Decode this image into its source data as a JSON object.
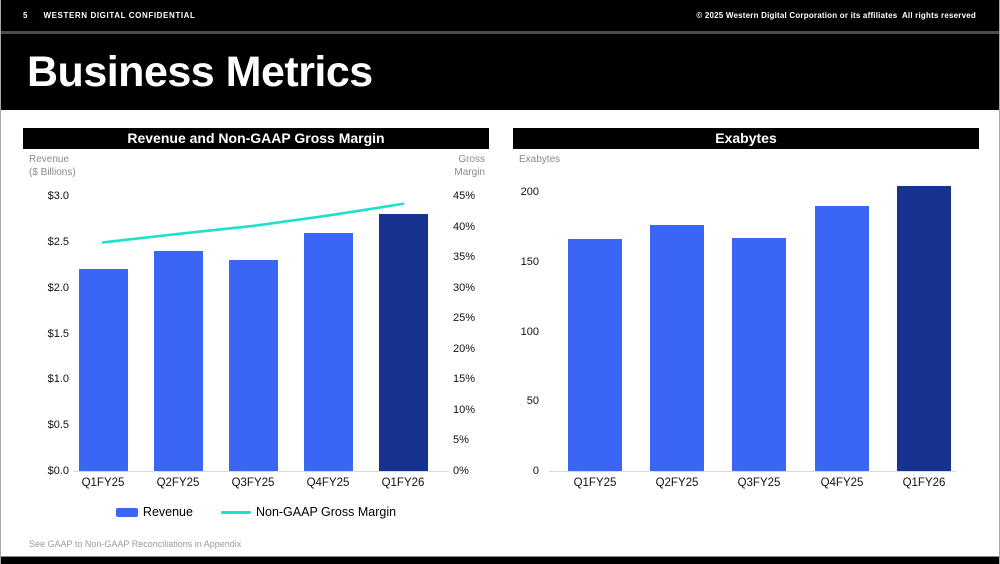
{
  "header": {
    "page_number": "5",
    "confidential": "WESTERN DIGITAL CONFIDENTIAL",
    "copyright": "© 2025 Western Digital Corporation or its affiliates  All rights reserved"
  },
  "title": "Business Metrics",
  "footnote": "See GAAP to Non-GAAP Reconciliations in Appendix",
  "colors": {
    "bar_blue": "#3A65F5",
    "bar_navy": "#16338F",
    "line_teal": "#1FE0C9",
    "banner_bg": "#000000",
    "banner_text": "#FFFFFF"
  },
  "chart_data": [
    {
      "type": "bar",
      "title": "Revenue and Non-GAAP Gross Margin",
      "left_axis_caption": [
        "Revenue",
        "($ Billions)"
      ],
      "right_axis_caption": [
        "Gross",
        "Margin"
      ],
      "categories": [
        "Q1FY25",
        "Q2FY25",
        "Q3FY25",
        "Q4FY25",
        "Q1FY26"
      ],
      "series": [
        {
          "name": "Revenue",
          "type": "bar",
          "axis": "left",
          "values": [
            2.2,
            2.4,
            2.3,
            2.6,
            2.8
          ]
        },
        {
          "name": "Non-GAAP Gross Margin",
          "type": "line",
          "axis": "right",
          "values": [
            37.4,
            38.8,
            40.1,
            41.8,
            43.7
          ]
        }
      ],
      "left_axis": {
        "min": 0,
        "max": 3,
        "step": 0.5,
        "ticks": [
          "$0.0",
          "$0.5",
          "$1.0",
          "$1.5",
          "$2.0",
          "$2.5",
          "$3.0"
        ]
      },
      "right_axis": {
        "min": 0,
        "max": 45,
        "step": 5,
        "ticks": [
          "0%",
          "5%",
          "10%",
          "15%",
          "20%",
          "25%",
          "30%",
          "35%",
          "40%",
          "45%"
        ]
      },
      "legend": [
        "Revenue",
        "Non-GAAP Gross Margin"
      ],
      "highlight_last_bar": true,
      "grid": false,
      "legend_position": "bottom"
    },
    {
      "type": "bar",
      "title": "Exabytes",
      "left_axis_caption": [
        "Exabytes"
      ],
      "categories": [
        "Q1FY25",
        "Q2FY25",
        "Q3FY25",
        "Q4FY25",
        "Q1FY26"
      ],
      "values": [
        166,
        176,
        167,
        190,
        204
      ],
      "left_axis": {
        "min": 0,
        "max": 200,
        "step": 50,
        "ticks": [
          "0",
          "50",
          "100",
          "150",
          "200"
        ]
      },
      "highlight_last_bar": true,
      "grid": false
    }
  ]
}
